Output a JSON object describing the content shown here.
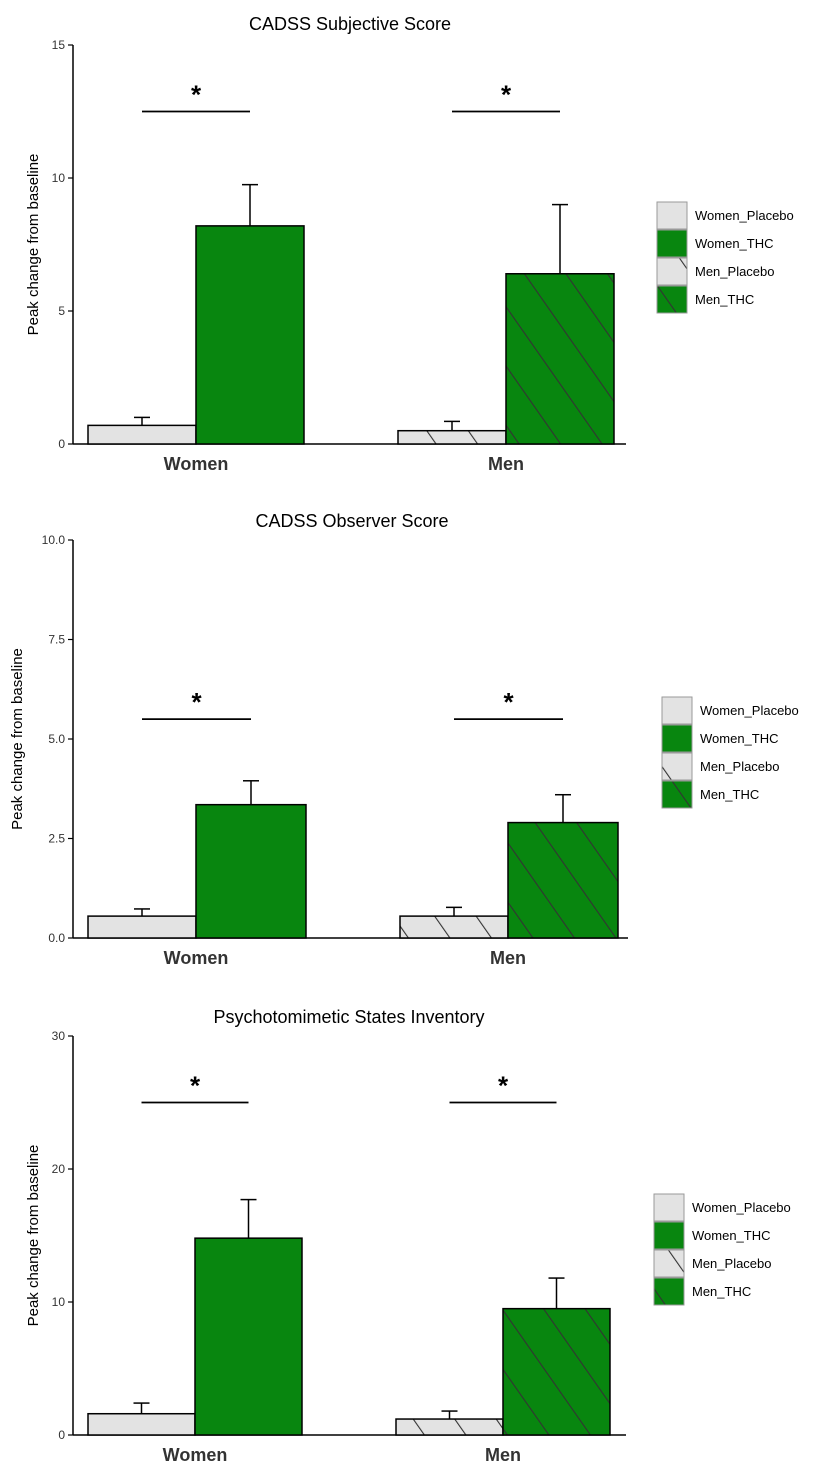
{
  "colors": {
    "placebo": "#e3e3e3",
    "thc": "#08860f",
    "stroke": "#000000",
    "hatch": "#333333"
  },
  "legend": [
    {
      "label": "Women_Placebo",
      "fill": "placebo",
      "hatch": false
    },
    {
      "label": "Women_THC",
      "fill": "thc",
      "hatch": false
    },
    {
      "label": "Men_Placebo",
      "fill": "placebo",
      "hatch": true
    },
    {
      "label": "Men_THC",
      "fill": "thc",
      "hatch": true
    }
  ],
  "chart_data": [
    {
      "type": "bar",
      "title": "CADSS Subjective Score",
      "ylabel": "Peak change from baseline",
      "xlabel": "",
      "categories": [
        "Women",
        "Men"
      ],
      "ylim": [
        0,
        15
      ],
      "yticks": [
        "0",
        "5",
        "10",
        "15"
      ],
      "series": [
        {
          "name": "Placebo",
          "values": [
            0.7,
            0.5
          ],
          "errors": [
            0.3,
            0.35
          ]
        },
        {
          "name": "THC",
          "values": [
            8.2,
            6.4
          ],
          "errors": [
            1.55,
            2.6
          ]
        }
      ],
      "significance": [
        {
          "category": "Women",
          "label": "*",
          "y": 12.5
        },
        {
          "category": "Men",
          "label": "*",
          "y": 12.5
        }
      ],
      "grid": false,
      "legend_position": "right"
    },
    {
      "type": "bar",
      "title": "CADSS Observer Score",
      "ylabel": "Peak change from baseline",
      "xlabel": "",
      "categories": [
        "Women",
        "Men"
      ],
      "ylim": [
        0,
        10
      ],
      "yticks": [
        "0.0",
        "2.5",
        "5.0",
        "7.5",
        "10.0"
      ],
      "series": [
        {
          "name": "Placebo",
          "values": [
            0.55,
            0.55
          ],
          "errors": [
            0.18,
            0.22
          ]
        },
        {
          "name": "THC",
          "values": [
            3.35,
            2.9
          ],
          "errors": [
            0.6,
            0.7
          ]
        }
      ],
      "significance": [
        {
          "category": "Women",
          "label": "*",
          "y": 5.5
        },
        {
          "category": "Men",
          "label": "*",
          "y": 5.5
        }
      ],
      "grid": false,
      "legend_position": "right"
    },
    {
      "type": "bar",
      "title": "Psychotomimetic States Inventory",
      "ylabel": "Peak change from baseline",
      "xlabel": "",
      "categories": [
        "Women",
        "Men"
      ],
      "ylim": [
        0,
        30
      ],
      "yticks": [
        "0",
        "10",
        "20",
        "30"
      ],
      "series": [
        {
          "name": "Placebo",
          "values": [
            1.6,
            1.2
          ],
          "errors": [
            0.8,
            0.6
          ]
        },
        {
          "name": "THC",
          "values": [
            14.8,
            9.5
          ],
          "errors": [
            2.9,
            2.3
          ]
        }
      ],
      "significance": [
        {
          "category": "Women",
          "label": "*",
          "y": 25
        },
        {
          "category": "Men",
          "label": "*",
          "y": 25
        }
      ],
      "grid": false,
      "legend_position": "right"
    }
  ]
}
